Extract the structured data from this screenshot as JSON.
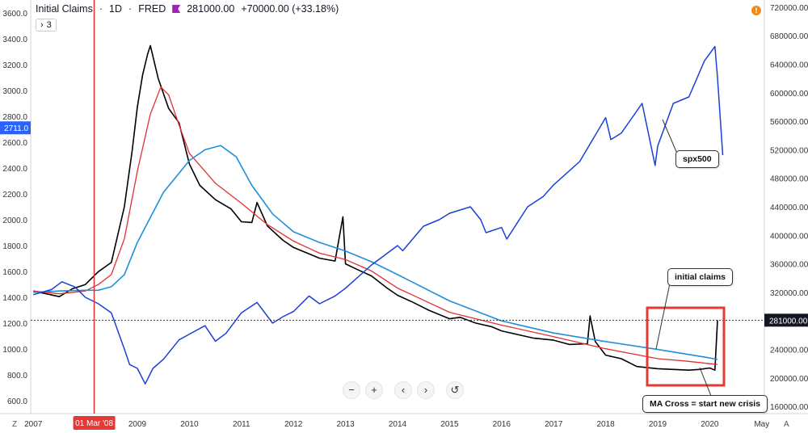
{
  "header": {
    "symbol": "Initial Claims",
    "interval": "1D",
    "source": "FRED",
    "separator": "·",
    "last_value": "281000.00",
    "change": "+70000.00 (+33.18%)",
    "collapse_count": "3",
    "collapse_icon": "›"
  },
  "colors": {
    "claims": "#000000",
    "ma_short": "#e03131",
    "ma_long": "#1e8fdc",
    "spx": "#1c3fd6",
    "vline": "#e53935",
    "box": "#e53935",
    "left_badge": "#2962ff",
    "right_badge": "#131722"
  },
  "chart_data": {
    "type": "line",
    "left_axis": {
      "range": [
        500,
        3700
      ],
      "ticks": [
        "600.0",
        "800.0",
        "1000.0",
        "1200.0",
        "1400.0",
        "1600.0",
        "1800.0",
        "2000.0",
        "2200.0",
        "2400.0",
        "2600.0",
        "2800.0",
        "3000.0",
        "3200.0",
        "3400.0",
        "3600.0"
      ],
      "badge": "2711.0"
    },
    "right_axis": {
      "range": [
        150000,
        730000
      ],
      "ticks": [
        "160000.00",
        "200000.00",
        "240000.00",
        "280000.00",
        "320000.00",
        "360000.00",
        "400000.00",
        "440000.00",
        "480000.00",
        "520000.00",
        "560000.00",
        "600000.00",
        "640000.00",
        "680000.00",
        "720000.00"
      ],
      "badge": "281000.00"
    },
    "x_axis": {
      "range": [
        2006.95,
        2021.05
      ],
      "ticks": [
        {
          "v": 2007.0,
          "label": "2007"
        },
        {
          "v": 2009.0,
          "label": "2009"
        },
        {
          "v": 2010.0,
          "label": "2010"
        },
        {
          "v": 2011.0,
          "label": "2011"
        },
        {
          "v": 2012.0,
          "label": "2012"
        },
        {
          "v": 2013.0,
          "label": "2013"
        },
        {
          "v": 2014.0,
          "label": "2014"
        },
        {
          "v": 2015.0,
          "label": "2015"
        },
        {
          "v": 2016.0,
          "label": "2016"
        },
        {
          "v": 2017.0,
          "label": "2017"
        },
        {
          "v": 2018.0,
          "label": "2018"
        },
        {
          "v": 2019.0,
          "label": "2019"
        },
        {
          "v": 2020.0,
          "label": "2020"
        },
        {
          "v": 2021.0,
          "label": "May"
        }
      ],
      "marker": {
        "v": 2008.17,
        "label": "01 Mar '08"
      },
      "corner_left": "Z",
      "corner_right": "A"
    },
    "crosshair_y": 281000,
    "series": [
      {
        "name": "initial claims",
        "scale": "right",
        "x": [
          2007.0,
          2007.25,
          2007.5,
          2007.75,
          2008.0,
          2008.25,
          2008.5,
          2008.75,
          2008.9,
          2009.0,
          2009.1,
          2009.2,
          2009.25,
          2009.4,
          2009.6,
          2009.8,
          2010.0,
          2010.2,
          2010.5,
          2010.8,
          2011.0,
          2011.2,
          2011.3,
          2011.5,
          2011.8,
          2012.0,
          2012.2,
          2012.5,
          2012.8,
          2012.95,
          2013.0,
          2013.2,
          2013.5,
          2013.8,
          2014.0,
          2014.3,
          2014.6,
          2015.0,
          2015.2,
          2015.5,
          2015.8,
          2016.0,
          2016.3,
          2016.6,
          2017.0,
          2017.3,
          2017.65,
          2017.7,
          2017.8,
          2018.0,
          2018.3,
          2018.6,
          2019.0,
          2019.3,
          2019.6,
          2019.8,
          2020.0,
          2020.1,
          2020.15
        ],
        "y": [
          322000,
          318000,
          314000,
          325000,
          331000,
          349000,
          362000,
          440000,
          519000,
          580000,
          625000,
          655000,
          666000,
          620000,
          578000,
          558000,
          500000,
          470000,
          450000,
          437000,
          419000,
          418000,
          446000,
          413000,
          393000,
          383000,
          377000,
          368000,
          364000,
          426000,
          360000,
          353000,
          343000,
          326000,
          316000,
          306000,
          295000,
          283000,
          285000,
          277000,
          272000,
          266000,
          261000,
          256000,
          253000,
          247000,
          248000,
          287000,
          251000,
          232000,
          227000,
          216000,
          213000,
          212000,
          211000,
          212000,
          214000,
          211000,
          281000
        ]
      },
      {
        "name": "",
        "scale": "right",
        "x": [
          2007.0,
          2007.5,
          2008.0,
          2008.25,
          2008.5,
          2008.75,
          2009.0,
          2009.25,
          2009.45,
          2009.6,
          2009.8,
          2010.0,
          2010.5,
          2011.0,
          2011.5,
          2012.0,
          2012.5,
          2013.0,
          2013.5,
          2014.0,
          2015.0,
          2016.0,
          2017.0,
          2018.0,
          2019.0,
          2019.5,
          2020.0,
          2020.15
        ],
        "y": [
          322000,
          318000,
          322000,
          331000,
          345000,
          395000,
          490000,
          570000,
          608000,
          597000,
          555000,
          515000,
          473000,
          445000,
          415000,
          392000,
          375000,
          366000,
          350000,
          326000,
          292000,
          274000,
          258000,
          241000,
          227000,
          224000,
          220000,
          219000
        ]
      },
      {
        "name": "",
        "scale": "right",
        "x": [
          2007.0,
          2007.5,
          2008.0,
          2008.25,
          2008.5,
          2008.75,
          2009.0,
          2009.5,
          2010.0,
          2010.3,
          2010.6,
          2010.9,
          2011.2,
          2011.6,
          2012.0,
          2012.5,
          2013.0,
          2013.5,
          2014.0,
          2015.0,
          2016.0,
          2017.0,
          2018.0,
          2019.0,
          2019.5,
          2020.0,
          2020.15
        ],
        "y": [
          320000,
          322000,
          323000,
          323000,
          328000,
          345000,
          390000,
          460000,
          505000,
          520000,
          526000,
          510000,
          470000,
          430000,
          405000,
          390000,
          378000,
          363000,
          345000,
          308000,
          280000,
          263000,
          251000,
          240000,
          234000,
          228000,
          226000
        ]
      },
      {
        "name": "spx500",
        "scale": "left",
        "x": [
          2007.0,
          2007.35,
          2007.55,
          2007.8,
          2008.0,
          2008.25,
          2008.5,
          2008.75,
          2008.85,
          2009.0,
          2009.15,
          2009.3,
          2009.5,
          2009.8,
          2010.0,
          2010.3,
          2010.5,
          2010.7,
          2011.0,
          2011.3,
          2011.6,
          2011.8,
          2012.0,
          2012.3,
          2012.5,
          2012.8,
          2013.0,
          2013.5,
          2014.0,
          2014.1,
          2014.5,
          2014.8,
          2015.0,
          2015.4,
          2015.6,
          2015.7,
          2016.0,
          2016.1,
          2016.5,
          2016.8,
          2017.0,
          2017.5,
          2018.0,
          2018.1,
          2018.3,
          2018.7,
          2018.95,
          2019.0,
          2019.3,
          2019.6,
          2019.9,
          2020.1,
          2020.15,
          2020.25
        ],
        "y": [
          1420,
          1460,
          1520,
          1480,
          1400,
          1350,
          1280,
          1000,
          880,
          850,
          730,
          850,
          920,
          1070,
          1115,
          1180,
          1060,
          1120,
          1280,
          1360,
          1200,
          1250,
          1290,
          1410,
          1350,
          1410,
          1470,
          1650,
          1800,
          1760,
          1950,
          2000,
          2050,
          2100,
          2000,
          1900,
          1940,
          1850,
          2100,
          2180,
          2270,
          2450,
          2790,
          2620,
          2670,
          2900,
          2420,
          2570,
          2900,
          2950,
          3230,
          3340,
          3100,
          2500
        ]
      }
    ],
    "annotations": [
      {
        "text": "spx500",
        "box": false
      },
      {
        "text": "initial claims",
        "box": false
      },
      {
        "text": "MA Cross = start new crisis",
        "box": true
      }
    ]
  },
  "zoom_controls": {
    "zoom_out": "−",
    "zoom_in": "+",
    "scroll_left": "‹",
    "scroll_right": "›",
    "reset": "↺"
  }
}
